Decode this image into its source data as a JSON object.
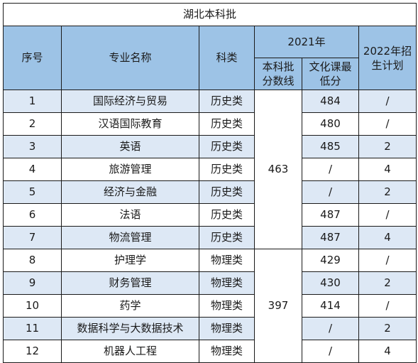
{
  "table": {
    "title": "湖北本科批",
    "headers": {
      "seq": "序号",
      "major": "专业名称",
      "category": "科类",
      "year2021": "2021年",
      "batch_line_1": "本科批",
      "batch_line_2": "分数线",
      "min_score_1": "文化课最",
      "min_score_2": "低分",
      "plan2022_1": "2022年招",
      "plan2022_2": "生计划"
    },
    "groups": [
      {
        "category_line": "463"
      },
      {
        "category_line": "397"
      }
    ],
    "rows": [
      {
        "seq": "1",
        "major": "国际经济与贸易",
        "category": "历史类",
        "min_score": "484",
        "plan": "/"
      },
      {
        "seq": "2",
        "major": "汉语国际教育",
        "category": "历史类",
        "min_score": "480",
        "plan": "/"
      },
      {
        "seq": "3",
        "major": "英语",
        "category": "历史类",
        "min_score": "485",
        "plan": "2"
      },
      {
        "seq": "4",
        "major": "旅游管理",
        "category": "历史类",
        "min_score": "/",
        "plan": "4"
      },
      {
        "seq": "5",
        "major": "经济与金融",
        "category": "历史类",
        "min_score": "/",
        "plan": "2"
      },
      {
        "seq": "6",
        "major": "法语",
        "category": "历史类",
        "min_score": "487",
        "plan": "/"
      },
      {
        "seq": "7",
        "major": "物流管理",
        "category": "历史类",
        "min_score": "487",
        "plan": "4"
      },
      {
        "seq": "8",
        "major": "护理学",
        "category": "物理类",
        "min_score": "429",
        "plan": "/"
      },
      {
        "seq": "9",
        "major": "财务管理",
        "category": "物理类",
        "min_score": "430",
        "plan": "2"
      },
      {
        "seq": "10",
        "major": "药学",
        "category": "物理类",
        "min_score": "414",
        "plan": "/"
      },
      {
        "seq": "11",
        "major": "数据科学与大数据技术",
        "category": "物理类",
        "min_score": "/",
        "plan": "2"
      },
      {
        "seq": "12",
        "major": "机器人工程",
        "category": "物理类",
        "min_score": "/",
        "plan": "4"
      }
    ],
    "colors": {
      "header_bg": "#9dc3e6",
      "alt_row_bg": "#dde8f5",
      "border": "#1a1a1a"
    }
  }
}
